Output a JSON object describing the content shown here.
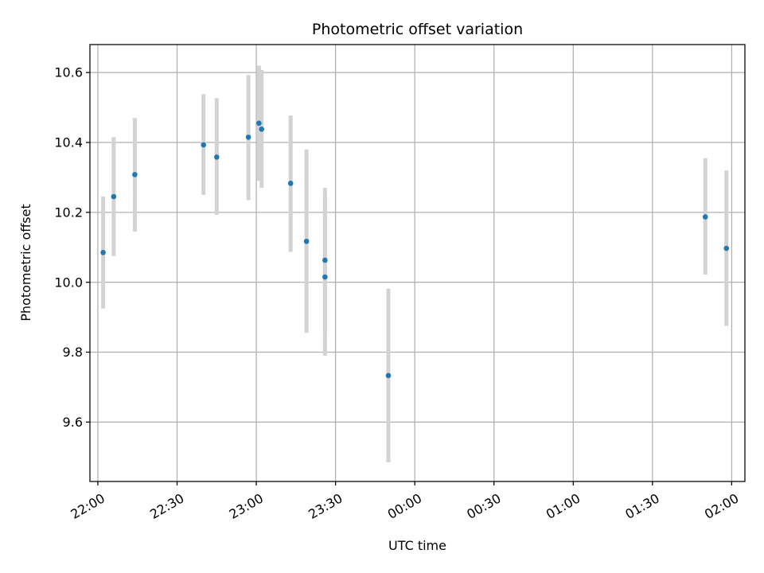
{
  "chart_data": {
    "type": "scatter",
    "title": "Photometric offset variation",
    "xlabel": "UTC time",
    "ylabel": "Photometric offset",
    "x_unit": "UTC time (HH:MM), 22:00 to 02:00 across midnight",
    "xlim": [
      "21:57",
      "02:05"
    ],
    "ylim": [
      9.43,
      10.68
    ],
    "x_ticks": [
      "22:00",
      "22:30",
      "23:00",
      "23:30",
      "00:00",
      "00:30",
      "01:00",
      "01:30",
      "02:00"
    ],
    "y_ticks": [
      "9.6",
      "9.8",
      "10.0",
      "10.2",
      "10.4",
      "10.6"
    ],
    "grid": true,
    "marker_color": "#1f77b4",
    "errorbar_color": "#d3d3d3",
    "points": [
      {
        "x": "22:02",
        "y": 10.085,
        "ylow": 9.925,
        "yhigh": 10.245
      },
      {
        "x": "22:06",
        "y": 10.245,
        "ylow": 10.075,
        "yhigh": 10.415
      },
      {
        "x": "22:14",
        "y": 10.308,
        "ylow": 10.145,
        "yhigh": 10.47
      },
      {
        "x": "22:40",
        "y": 10.393,
        "ylow": 10.25,
        "yhigh": 10.538
      },
      {
        "x": "22:45",
        "y": 10.358,
        "ylow": 10.193,
        "yhigh": 10.527
      },
      {
        "x": "22:57",
        "y": 10.415,
        "ylow": 10.235,
        "yhigh": 10.593
      },
      {
        "x": "23:01",
        "y": 10.455,
        "ylow": 10.29,
        "yhigh": 10.62
      },
      {
        "x": "23:02",
        "y": 10.438,
        "ylow": 10.27,
        "yhigh": 10.607
      },
      {
        "x": "23:13",
        "y": 10.283,
        "ylow": 10.087,
        "yhigh": 10.477
      },
      {
        "x": "23:19",
        "y": 10.117,
        "ylow": 9.855,
        "yhigh": 10.38
      },
      {
        "x": "23:26",
        "y": 10.063,
        "ylow": 9.857,
        "yhigh": 10.27
      },
      {
        "x": "23:26",
        "y": 10.015,
        "ylow": 9.79,
        "yhigh": 10.245
      },
      {
        "x": "23:50",
        "y": 9.733,
        "ylow": 9.485,
        "yhigh": 9.982
      },
      {
        "x": "01:50",
        "y": 10.187,
        "ylow": 10.022,
        "yhigh": 10.355
      },
      {
        "x": "01:58",
        "y": 10.097,
        "ylow": 9.875,
        "yhigh": 10.32
      }
    ]
  }
}
